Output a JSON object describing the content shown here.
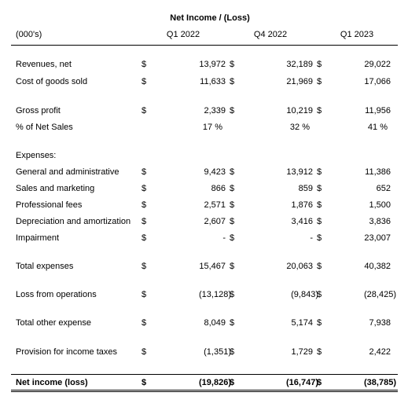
{
  "title": "Net Income / (Loss)",
  "table": {
    "header": [
      "(000's)",
      "Q1 2022",
      "Q4 2022",
      "Q1 2023"
    ],
    "rows": [
      {
        "label": "Revenues, net",
        "cells": [
          {
            "currency": "$",
            "amount": "13,972"
          },
          {
            "currency": "$",
            "amount": "32,189"
          },
          {
            "currency": "$",
            "amount": "29,022"
          }
        ]
      },
      {
        "label": "Cost of goods sold",
        "cells": [
          {
            "currency": "$",
            "amount": "11,633"
          },
          {
            "currency": "$",
            "amount": "21,969"
          },
          {
            "currency": "$",
            "amount": "17,066"
          }
        ]
      },
      {
        "label": "Gross profit",
        "cells": [
          {
            "currency": "$",
            "amount": "2,339"
          },
          {
            "currency": "$",
            "amount": "10,219"
          },
          {
            "currency": "$",
            "amount": "11,956"
          }
        ]
      },
      {
        "label": "% of Net Sales",
        "cells": [
          {
            "amount": "17 %"
          },
          {
            "amount": "32 %"
          },
          {
            "amount": "41 %"
          }
        ]
      },
      {
        "label": "Expenses:"
      },
      {
        "label": "General and administrative",
        "cells": [
          {
            "currency": "$",
            "amount": "9,423"
          },
          {
            "currency": "$",
            "amount": "13,912"
          },
          {
            "currency": "$",
            "amount": "11,386"
          }
        ]
      },
      {
        "label": "Sales and marketing",
        "cells": [
          {
            "currency": "$",
            "amount": "866"
          },
          {
            "currency": "$",
            "amount": "859"
          },
          {
            "currency": "$",
            "amount": "652"
          }
        ]
      },
      {
        "label": "Professional fees",
        "cells": [
          {
            "currency": "$",
            "amount": "2,571"
          },
          {
            "currency": "$",
            "amount": "1,876"
          },
          {
            "currency": "$",
            "amount": "1,500"
          }
        ]
      },
      {
        "label": "Depreciation and amortization",
        "cells": [
          {
            "currency": "$",
            "amount": "2,607"
          },
          {
            "currency": "$",
            "amount": "3,416"
          },
          {
            "currency": "$",
            "amount": "3,836"
          }
        ]
      },
      {
        "label": "Impairment",
        "cells": [
          {
            "currency": "$",
            "amount": "-"
          },
          {
            "currency": "$",
            "amount": "-"
          },
          {
            "currency": "$",
            "amount": "23,007"
          }
        ]
      },
      {
        "label": "Total expenses",
        "cells": [
          {
            "currency": "$",
            "amount": "15,467"
          },
          {
            "currency": "$",
            "amount": "20,063"
          },
          {
            "currency": "$",
            "amount": "40,382"
          }
        ]
      },
      {
        "label": "Loss from operations",
        "cells": [
          {
            "currency": "$",
            "amount": "(13,128)"
          },
          {
            "currency": "$",
            "amount": "(9,843)"
          },
          {
            "currency": "$",
            "amount": "(28,425)"
          }
        ]
      },
      {
        "label": "Total other expense",
        "cells": [
          {
            "currency": "$",
            "amount": "8,049"
          },
          {
            "currency": "$",
            "amount": "5,174"
          },
          {
            "currency": "$",
            "amount": "7,938"
          }
        ]
      },
      {
        "label": "Provision for income taxes",
        "cells": [
          {
            "currency": "$",
            "amount": "(1,351)"
          },
          {
            "currency": "$",
            "amount": "1,729"
          },
          {
            "currency": "$",
            "amount": "2,422"
          }
        ]
      },
      {
        "label": "Net income (loss)",
        "cells": [
          {
            "currency": "$",
            "amount": "(19,826)"
          },
          {
            "currency": "$",
            "amount": "(16,747)"
          },
          {
            "currency": "$",
            "amount": "(38,785)"
          }
        ]
      }
    ]
  }
}
